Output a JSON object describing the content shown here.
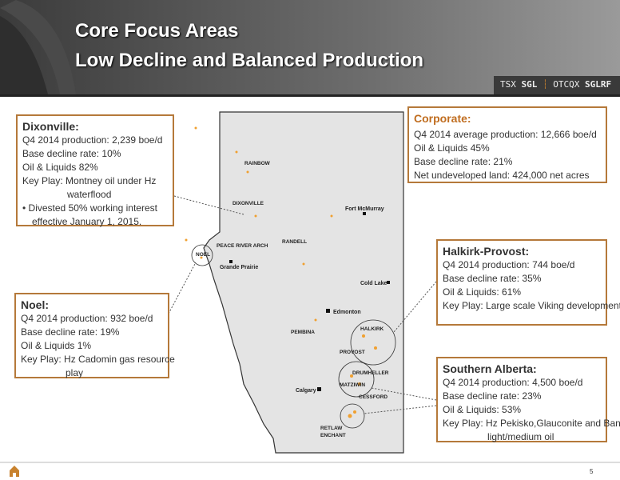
{
  "header": {
    "title_line1": "Core Focus Areas",
    "title_line2": "Low Decline and Balanced Production",
    "ticker": {
      "tsx_label": "TSX",
      "tsx": "SGL",
      "otcqx_label": "OTCQX",
      "otcqx": "SGLRF"
    }
  },
  "boxes": {
    "dixonville": {
      "title": "Dixonville:",
      "lines": [
        "Q4 2014 production: 2,239 boe/d",
        "Base decline rate: 10%",
        "Oil & Liquids 82%",
        "Key Play: Montney oil under Hz waterflood"
      ],
      "bullet": "Divested 50% working interest effective January 1, 2015."
    },
    "corporate": {
      "title": "Corporate:",
      "lines": [
        "Q4 2014 average production: 12,666 boe/d",
        "Oil & Liquids 45%",
        "Base decline rate: 21%",
        "Net undeveloped land: 424,000 net acres"
      ]
    },
    "halkirk_provost": {
      "title": "Halkirk-Provost:",
      "lines": [
        "Q4 2014 production: 744 boe/d",
        "Base decline rate: 35%",
        "Oil & Liquids: 61%",
        "Key Play: Large scale Viking development"
      ]
    },
    "noel": {
      "title": "Noel:",
      "lines": [
        "Q4 2014 production: 932 boe/d",
        "Base decline rate: 19%",
        "Oil & Liquids 1%",
        "Key Play: Hz Cadomin gas resource play"
      ]
    },
    "southern_alberta": {
      "title": "Southern Alberta:",
      "lines": [
        "Q4 2014 production: 4,500 boe/d",
        "Base decline rate: 23%",
        "Oil & Liquids: 53%",
        "Key Play: Hz Pekisko,Glauconite and Banff light/medium oil"
      ]
    }
  },
  "map": {
    "plays": [
      "RAINBOW",
      "DIXONVILLE",
      "PEACE RIVER ARCH",
      "NOEL",
      "RANDELL",
      "PEMBINA",
      "HALKIRK",
      "PROVOST",
      "DRUMHELLER",
      "MATZIWIN",
      "CESSFORD",
      "RETLAW",
      "ENCHANT"
    ],
    "cities": [
      "Fort McMurray",
      "Grande Prairie",
      "Cold Lake",
      "Edmonton",
      "Calgary"
    ]
  },
  "footer": {
    "page_number": "5"
  }
}
